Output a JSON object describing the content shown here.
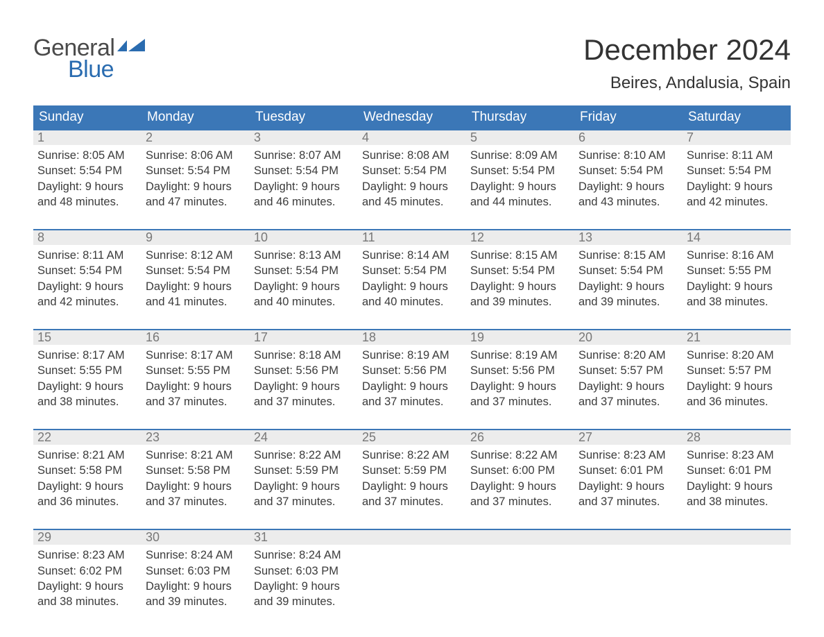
{
  "logo": {
    "part1": "General",
    "part2": "Blue",
    "color_general": "#4a4a4a",
    "color_blue": "#2a6cb0",
    "flag_color": "#2a6cb0"
  },
  "header": {
    "month_year": "December 2024",
    "location": "Beires, Andalusia, Spain"
  },
  "style": {
    "header_bg": "#3b77b7",
    "header_text": "#ffffff",
    "daynum_bg": "#ececec",
    "daynum_color": "#777777",
    "row_border": "#3b77b7",
    "body_text": "#3b3b3b",
    "page_bg": "#ffffff",
    "month_fontsize": 42,
    "location_fontsize": 24,
    "dayname_fontsize": 19,
    "daynum_fontsize": 18,
    "info_fontsize": 16.5
  },
  "daynames": [
    "Sunday",
    "Monday",
    "Tuesday",
    "Wednesday",
    "Thursday",
    "Friday",
    "Saturday"
  ],
  "weeks": [
    [
      {
        "n": "1",
        "sunrise": "8:05 AM",
        "sunset": "5:54 PM",
        "dh": "9",
        "dm": "48"
      },
      {
        "n": "2",
        "sunrise": "8:06 AM",
        "sunset": "5:54 PM",
        "dh": "9",
        "dm": "47"
      },
      {
        "n": "3",
        "sunrise": "8:07 AM",
        "sunset": "5:54 PM",
        "dh": "9",
        "dm": "46"
      },
      {
        "n": "4",
        "sunrise": "8:08 AM",
        "sunset": "5:54 PM",
        "dh": "9",
        "dm": "45"
      },
      {
        "n": "5",
        "sunrise": "8:09 AM",
        "sunset": "5:54 PM",
        "dh": "9",
        "dm": "44"
      },
      {
        "n": "6",
        "sunrise": "8:10 AM",
        "sunset": "5:54 PM",
        "dh": "9",
        "dm": "43"
      },
      {
        "n": "7",
        "sunrise": "8:11 AM",
        "sunset": "5:54 PM",
        "dh": "9",
        "dm": "42"
      }
    ],
    [
      {
        "n": "8",
        "sunrise": "8:11 AM",
        "sunset": "5:54 PM",
        "dh": "9",
        "dm": "42"
      },
      {
        "n": "9",
        "sunrise": "8:12 AM",
        "sunset": "5:54 PM",
        "dh": "9",
        "dm": "41"
      },
      {
        "n": "10",
        "sunrise": "8:13 AM",
        "sunset": "5:54 PM",
        "dh": "9",
        "dm": "40"
      },
      {
        "n": "11",
        "sunrise": "8:14 AM",
        "sunset": "5:54 PM",
        "dh": "9",
        "dm": "40"
      },
      {
        "n": "12",
        "sunrise": "8:15 AM",
        "sunset": "5:54 PM",
        "dh": "9",
        "dm": "39"
      },
      {
        "n": "13",
        "sunrise": "8:15 AM",
        "sunset": "5:54 PM",
        "dh": "9",
        "dm": "39"
      },
      {
        "n": "14",
        "sunrise": "8:16 AM",
        "sunset": "5:55 PM",
        "dh": "9",
        "dm": "38"
      }
    ],
    [
      {
        "n": "15",
        "sunrise": "8:17 AM",
        "sunset": "5:55 PM",
        "dh": "9",
        "dm": "38"
      },
      {
        "n": "16",
        "sunrise": "8:17 AM",
        "sunset": "5:55 PM",
        "dh": "9",
        "dm": "37"
      },
      {
        "n": "17",
        "sunrise": "8:18 AM",
        "sunset": "5:56 PM",
        "dh": "9",
        "dm": "37"
      },
      {
        "n": "18",
        "sunrise": "8:19 AM",
        "sunset": "5:56 PM",
        "dh": "9",
        "dm": "37"
      },
      {
        "n": "19",
        "sunrise": "8:19 AM",
        "sunset": "5:56 PM",
        "dh": "9",
        "dm": "37"
      },
      {
        "n": "20",
        "sunrise": "8:20 AM",
        "sunset": "5:57 PM",
        "dh": "9",
        "dm": "37"
      },
      {
        "n": "21",
        "sunrise": "8:20 AM",
        "sunset": "5:57 PM",
        "dh": "9",
        "dm": "36"
      }
    ],
    [
      {
        "n": "22",
        "sunrise": "8:21 AM",
        "sunset": "5:58 PM",
        "dh": "9",
        "dm": "36"
      },
      {
        "n": "23",
        "sunrise": "8:21 AM",
        "sunset": "5:58 PM",
        "dh": "9",
        "dm": "37"
      },
      {
        "n": "24",
        "sunrise": "8:22 AM",
        "sunset": "5:59 PM",
        "dh": "9",
        "dm": "37"
      },
      {
        "n": "25",
        "sunrise": "8:22 AM",
        "sunset": "5:59 PM",
        "dh": "9",
        "dm": "37"
      },
      {
        "n": "26",
        "sunrise": "8:22 AM",
        "sunset": "6:00 PM",
        "dh": "9",
        "dm": "37"
      },
      {
        "n": "27",
        "sunrise": "8:23 AM",
        "sunset": "6:01 PM",
        "dh": "9",
        "dm": "37"
      },
      {
        "n": "28",
        "sunrise": "8:23 AM",
        "sunset": "6:01 PM",
        "dh": "9",
        "dm": "38"
      }
    ],
    [
      {
        "n": "29",
        "sunrise": "8:23 AM",
        "sunset": "6:02 PM",
        "dh": "9",
        "dm": "38"
      },
      {
        "n": "30",
        "sunrise": "8:24 AM",
        "sunset": "6:03 PM",
        "dh": "9",
        "dm": "39"
      },
      {
        "n": "31",
        "sunrise": "8:24 AM",
        "sunset": "6:03 PM",
        "dh": "9",
        "dm": "39"
      },
      null,
      null,
      null,
      null
    ]
  ],
  "labels": {
    "sunrise": "Sunrise: ",
    "sunset": "Sunset: ",
    "daylight1": "Daylight: ",
    "hours": " hours",
    "and": "and ",
    "minutes": " minutes."
  }
}
